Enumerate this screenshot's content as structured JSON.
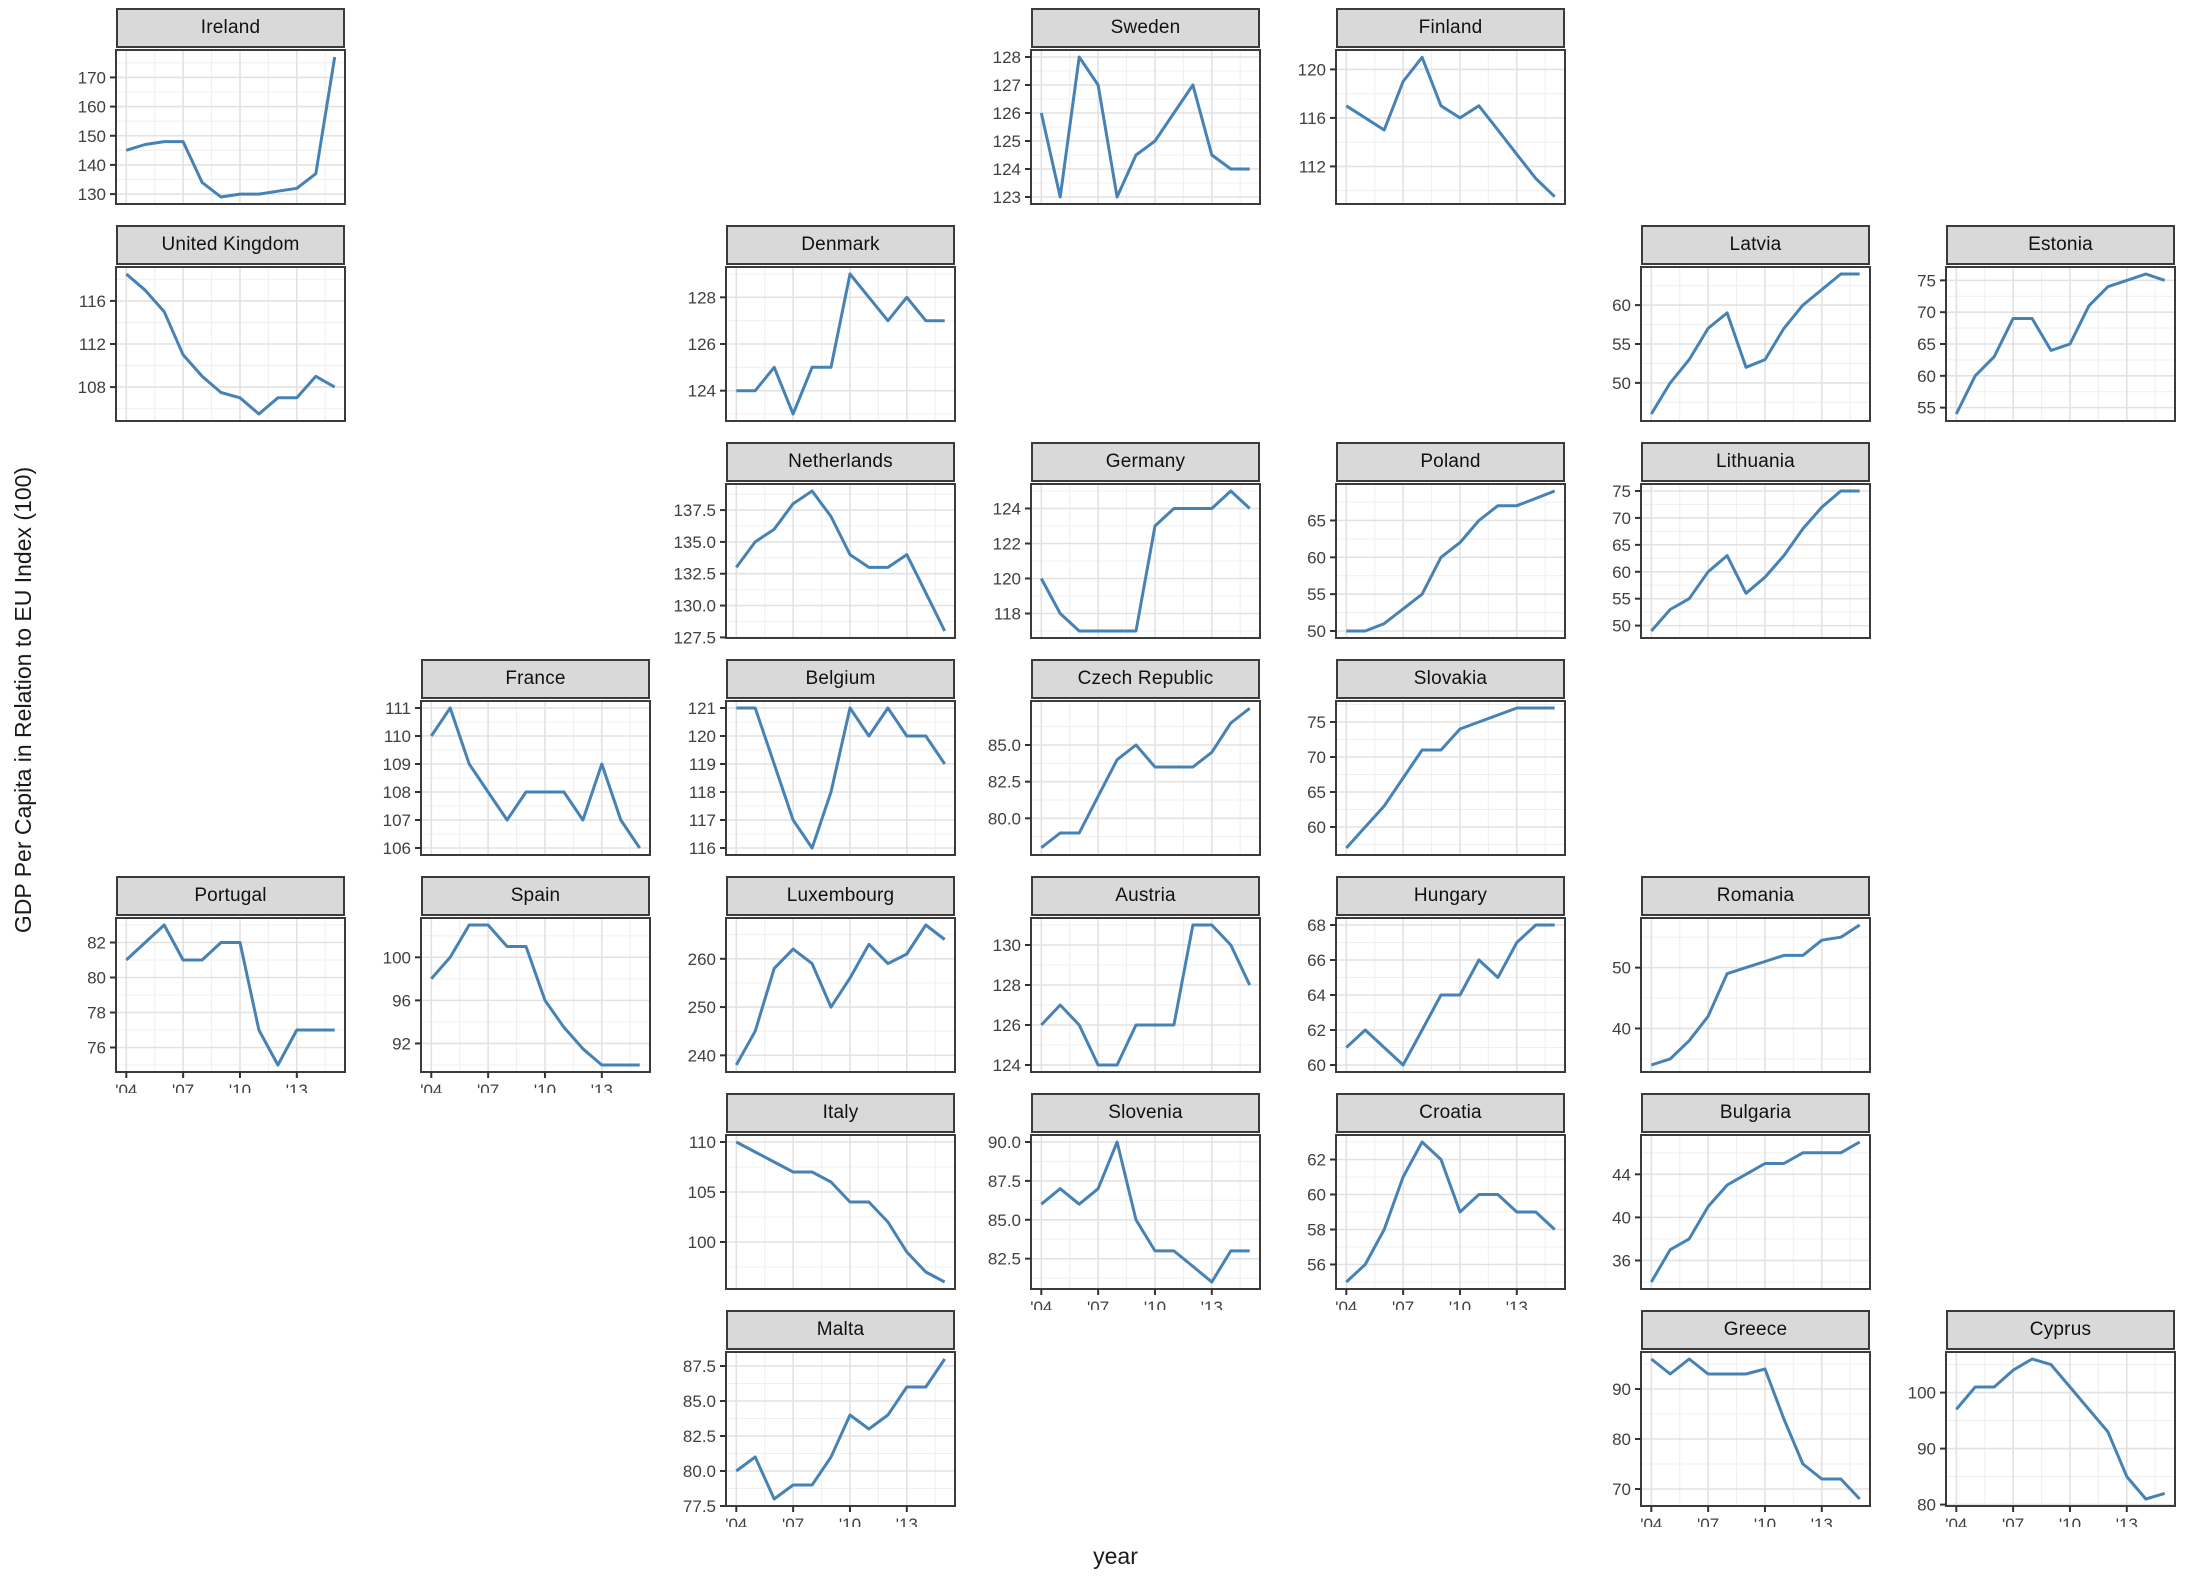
{
  "figure": {
    "y_axis_title": "GDP Per Capita in Relation to EU Index (100)",
    "x_axis_title": "year"
  },
  "style": {
    "line_color": "#4682B4",
    "strip_fill": "#d9d9d9",
    "panel_fill": "#ffffff",
    "panel_border": "#3b3b3b",
    "grid_major": "#e2e2e2",
    "grid_minor": "#f0f0f0",
    "tick_color": "#333333",
    "tick_label_color": "#404040"
  },
  "chart_data": {
    "type": "line",
    "x_label": "year",
    "y_label": "GDP Per Capita in Relation to EU Index (100)",
    "x": [
      2004,
      2005,
      2006,
      2007,
      2008,
      2009,
      2010,
      2011,
      2012,
      2013,
      2014,
      2015
    ],
    "x_range": [
      2004,
      2015
    ],
    "x_ticks": [
      2004,
      2007,
      2010,
      2013
    ],
    "x_tick_labels": [
      "'04",
      "'07",
      "'10",
      "'13"
    ],
    "x_minor_ticks": [
      2005.5,
      2008.5,
      2011.5,
      2014.5
    ],
    "grid": {
      "rows": 7,
      "cols": 7
    },
    "legend": "none",
    "series": [
      {
        "name": "Ireland",
        "row": 1,
        "col": 1,
        "show_x_axis": false,
        "ylim": [
          126.6,
          179.4
        ],
        "y_ticks": [
          130,
          140,
          150,
          160,
          170
        ],
        "y_tick_labels": [
          "130",
          "140",
          "150",
          "160",
          "170"
        ],
        "values": [
          145,
          147,
          148,
          148,
          134,
          129,
          130,
          130,
          131,
          132,
          137,
          177
        ]
      },
      {
        "name": "Sweden",
        "row": 1,
        "col": 4,
        "show_x_axis": false,
        "ylim": [
          122.75,
          128.25
        ],
        "y_ticks": [
          123,
          124,
          125,
          126,
          127,
          128
        ],
        "y_tick_labels": [
          "123",
          "124",
          "125",
          "126",
          "127",
          "128"
        ],
        "values": [
          126,
          123,
          128,
          127,
          123,
          124.5,
          125,
          126,
          127,
          124.5,
          124,
          124
        ]
      },
      {
        "name": "Finland",
        "row": 1,
        "col": 5,
        "show_x_axis": false,
        "ylim": [
          108.9,
          121.6
        ],
        "y_ticks": [
          112,
          116,
          120
        ],
        "y_tick_labels": [
          "112",
          "116",
          "120"
        ],
        "values": [
          117,
          116,
          115,
          119,
          121,
          117,
          116,
          117,
          115,
          113,
          111,
          109.5
        ]
      },
      {
        "name": "United Kingdom",
        "row": 2,
        "col": 1,
        "show_x_axis": false,
        "ylim": [
          104.85,
          119.15
        ],
        "y_ticks": [
          108,
          112,
          116
        ],
        "y_tick_labels": [
          "108",
          "112",
          "116"
        ],
        "values": [
          118.5,
          117,
          115,
          111,
          109,
          107.5,
          107,
          105.5,
          107,
          107,
          109,
          108
        ]
      },
      {
        "name": "Denmark",
        "row": 2,
        "col": 3,
        "show_x_axis": false,
        "ylim": [
          122.7,
          129.3
        ],
        "y_ticks": [
          124,
          126,
          128
        ],
        "y_tick_labels": [
          "124",
          "126",
          "128"
        ],
        "values": [
          124,
          124,
          125,
          123,
          125,
          125,
          129,
          128,
          127,
          128,
          127,
          127
        ]
      },
      {
        "name": "Latvia",
        "row": 2,
        "col": 6,
        "show_x_axis": false,
        "ylim": [
          45.1,
          64.9
        ],
        "y_ticks": [
          50,
          55,
          60
        ],
        "y_tick_labels": [
          "50",
          "55",
          "60"
        ],
        "values": [
          46,
          50,
          53,
          57,
          59,
          52,
          53,
          57,
          60,
          62,
          64,
          64
        ]
      },
      {
        "name": "Estonia",
        "row": 2,
        "col": 7,
        "show_x_axis": false,
        "ylim": [
          52.9,
          77.1
        ],
        "y_ticks": [
          55,
          60,
          65,
          70,
          75
        ],
        "y_tick_labels": [
          "55",
          "60",
          "65",
          "70",
          "75"
        ],
        "values": [
          54,
          60,
          63,
          69,
          69,
          64,
          65,
          71,
          74,
          75,
          76,
          75
        ]
      },
      {
        "name": "Netherlands",
        "row": 3,
        "col": 3,
        "show_x_axis": false,
        "ylim": [
          127.45,
          139.55
        ],
        "y_ticks": [
          127.5,
          130,
          132.5,
          135,
          137.5
        ],
        "y_tick_labels": [
          "127.5",
          "130.0",
          "132.5",
          "135.0",
          "137.5"
        ],
        "values": [
          133,
          135,
          136,
          138,
          139,
          137,
          134,
          133,
          133,
          134,
          131,
          128
        ]
      },
      {
        "name": "Germany",
        "row": 3,
        "col": 4,
        "show_x_axis": false,
        "ylim": [
          116.6,
          125.4
        ],
        "y_ticks": [
          118,
          120,
          122,
          124
        ],
        "y_tick_labels": [
          "118",
          "120",
          "122",
          "124"
        ],
        "values": [
          120,
          118,
          117,
          117,
          117,
          117,
          123,
          124,
          124,
          124,
          125,
          124
        ]
      },
      {
        "name": "Poland",
        "row": 3,
        "col": 5,
        "show_x_axis": false,
        "ylim": [
          49.05,
          69.95
        ],
        "y_ticks": [
          50,
          55,
          60,
          65
        ],
        "y_tick_labels": [
          "50",
          "55",
          "60",
          "65"
        ],
        "values": [
          50,
          50,
          51,
          53,
          55,
          60,
          62,
          65,
          67,
          67,
          68,
          69
        ]
      },
      {
        "name": "Lithuania",
        "row": 3,
        "col": 6,
        "show_x_axis": false,
        "ylim": [
          47.7,
          76.3
        ],
        "y_ticks": [
          50,
          55,
          60,
          65,
          70,
          75
        ],
        "y_tick_labels": [
          "50",
          "55",
          "60",
          "65",
          "70",
          "75"
        ],
        "values": [
          49,
          53,
          55,
          60,
          63,
          56,
          59,
          63,
          68,
          72,
          75,
          75
        ]
      },
      {
        "name": "France",
        "row": 4,
        "col": 2,
        "show_x_axis": false,
        "ylim": [
          105.75,
          111.25
        ],
        "y_ticks": [
          106,
          107,
          108,
          109,
          110,
          111
        ],
        "y_tick_labels": [
          "106",
          "107",
          "108",
          "109",
          "110",
          "111"
        ],
        "values": [
          110,
          111,
          109,
          108,
          107,
          108,
          108,
          108,
          107,
          109,
          107,
          106
        ]
      },
      {
        "name": "Belgium",
        "row": 4,
        "col": 3,
        "show_x_axis": false,
        "ylim": [
          115.75,
          121.25
        ],
        "y_ticks": [
          116,
          117,
          118,
          119,
          120,
          121
        ],
        "y_tick_labels": [
          "116",
          "117",
          "118",
          "119",
          "120",
          "121"
        ],
        "values": [
          121,
          121,
          119,
          117,
          116,
          118,
          121,
          120,
          121,
          120,
          120,
          119
        ]
      },
      {
        "name": "Czech Republic",
        "row": 4,
        "col": 4,
        "show_x_axis": false,
        "ylim": [
          77.5,
          88.0
        ],
        "y_ticks": [
          80,
          82.5,
          85
        ],
        "y_tick_labels": [
          "80.0",
          "82.5",
          "85.0"
        ],
        "values": [
          78,
          79,
          79,
          81.5,
          84,
          85,
          83.5,
          83.5,
          83.5,
          84.5,
          86.5,
          87.5
        ]
      },
      {
        "name": "Slovakia",
        "row": 4,
        "col": 5,
        "show_x_axis": false,
        "ylim": [
          56,
          78
        ],
        "y_ticks": [
          60,
          65,
          70,
          75
        ],
        "y_tick_labels": [
          "60",
          "65",
          "70",
          "75"
        ],
        "values": [
          57,
          60,
          63,
          67,
          71,
          71,
          74,
          75,
          76,
          77,
          77,
          77
        ]
      },
      {
        "name": "Portugal",
        "row": 5,
        "col": 1,
        "show_x_axis": true,
        "ylim": [
          74.6,
          83.4
        ],
        "y_ticks": [
          76,
          78,
          80,
          82
        ],
        "y_tick_labels": [
          "76",
          "78",
          "80",
          "82"
        ],
        "values": [
          81,
          82,
          83,
          81,
          81,
          82,
          82,
          77,
          75,
          77,
          77,
          77
        ]
      },
      {
        "name": "Spain",
        "row": 5,
        "col": 2,
        "show_x_axis": true,
        "ylim": [
          89.35,
          103.65
        ],
        "y_ticks": [
          92,
          96,
          100
        ],
        "y_tick_labels": [
          "92",
          "96",
          "100"
        ],
        "values": [
          98,
          100,
          103,
          103,
          101,
          101,
          96,
          93.5,
          91.5,
          90,
          90,
          90
        ]
      },
      {
        "name": "Luxembourg",
        "row": 5,
        "col": 3,
        "show_x_axis": false,
        "ylim": [
          236.55,
          268.45
        ],
        "y_ticks": [
          240,
          250,
          260
        ],
        "y_tick_labels": [
          "240",
          "250",
          "260"
        ],
        "values": [
          238,
          245,
          258,
          262,
          259,
          250,
          256,
          263,
          259,
          261,
          267,
          264
        ]
      },
      {
        "name": "Austria",
        "row": 5,
        "col": 4,
        "show_x_axis": false,
        "ylim": [
          123.65,
          131.35
        ],
        "y_ticks": [
          124,
          126,
          128,
          130
        ],
        "y_tick_labels": [
          "124",
          "126",
          "128",
          "130"
        ],
        "values": [
          126,
          127,
          126,
          124,
          124,
          126,
          126,
          126,
          131,
          131,
          130,
          128
        ]
      },
      {
        "name": "Hungary",
        "row": 5,
        "col": 5,
        "show_x_axis": false,
        "ylim": [
          59.6,
          68.4
        ],
        "y_ticks": [
          60,
          62,
          64,
          66,
          68
        ],
        "y_tick_labels": [
          "60",
          "62",
          "64",
          "66",
          "68"
        ],
        "values": [
          61,
          62,
          61,
          60,
          62,
          64,
          64,
          66,
          65,
          67,
          68,
          68
        ]
      },
      {
        "name": "Romania",
        "row": 5,
        "col": 6,
        "show_x_axis": false,
        "ylim": [
          32.85,
          58.15
        ],
        "y_ticks": [
          40,
          50
        ],
        "y_tick_labels": [
          "40",
          "50"
        ],
        "values": [
          34,
          35,
          38,
          42,
          49,
          50,
          51,
          52,
          52,
          54.5,
          55,
          57
        ]
      },
      {
        "name": "Italy",
        "row": 6,
        "col": 3,
        "show_x_axis": false,
        "ylim": [
          95.3,
          110.7
        ],
        "y_ticks": [
          100,
          105,
          110
        ],
        "y_tick_labels": [
          "100",
          "105",
          "110"
        ],
        "values": [
          110,
          109,
          108,
          107,
          107,
          106,
          104,
          104,
          102,
          99,
          97,
          96
        ]
      },
      {
        "name": "Slovenia",
        "row": 6,
        "col": 4,
        "show_x_axis": true,
        "ylim": [
          80.55,
          90.45
        ],
        "y_ticks": [
          82.5,
          85,
          87.5,
          90
        ],
        "y_tick_labels": [
          "82.5",
          "85.0",
          "87.5",
          "90.0"
        ],
        "values": [
          86,
          87,
          86,
          87,
          90,
          85,
          83,
          83,
          82,
          81,
          83,
          83
        ]
      },
      {
        "name": "Croatia",
        "row": 6,
        "col": 5,
        "show_x_axis": true,
        "ylim": [
          54.6,
          63.4
        ],
        "y_ticks": [
          56,
          58,
          60,
          62
        ],
        "y_tick_labels": [
          "56",
          "58",
          "60",
          "62"
        ],
        "values": [
          55,
          56,
          58,
          61,
          63,
          62,
          59,
          60,
          60,
          59,
          59,
          58
        ]
      },
      {
        "name": "Bulgaria",
        "row": 6,
        "col": 6,
        "show_x_axis": false,
        "ylim": [
          33.35,
          47.65
        ],
        "y_ticks": [
          36,
          40,
          44
        ],
        "y_tick_labels": [
          "36",
          "40",
          "44"
        ],
        "values": [
          34,
          37,
          38,
          41,
          43,
          44,
          45,
          45,
          46,
          46,
          46,
          47
        ]
      },
      {
        "name": "Malta",
        "row": 7,
        "col": 3,
        "show_x_axis": true,
        "ylim": [
          77.5,
          88.5
        ],
        "y_ticks": [
          77.5,
          80,
          82.5,
          85,
          87.5
        ],
        "y_tick_labels": [
          "77.5",
          "80.0",
          "82.5",
          "85.0",
          "87.5"
        ],
        "values": [
          80,
          81,
          78,
          79,
          79,
          81,
          84,
          83,
          84,
          86,
          86,
          88
        ]
      },
      {
        "name": "Greece",
        "row": 7,
        "col": 6,
        "show_x_axis": true,
        "ylim": [
          66.6,
          97.4
        ],
        "y_ticks": [
          70,
          80,
          90
        ],
        "y_tick_labels": [
          "70",
          "80",
          "90"
        ],
        "values": [
          96,
          93,
          96,
          93,
          93,
          93,
          94,
          84,
          75,
          72,
          72,
          68
        ]
      },
      {
        "name": "Cyprus",
        "row": 7,
        "col": 7,
        "show_x_axis": true,
        "ylim": [
          79.75,
          107.25
        ],
        "y_ticks": [
          80,
          90,
          100
        ],
        "y_tick_labels": [
          "80",
          "90",
          "100"
        ],
        "values": [
          97,
          101,
          101,
          104,
          106,
          105,
          101,
          97,
          93,
          85,
          81,
          82
        ]
      }
    ]
  }
}
